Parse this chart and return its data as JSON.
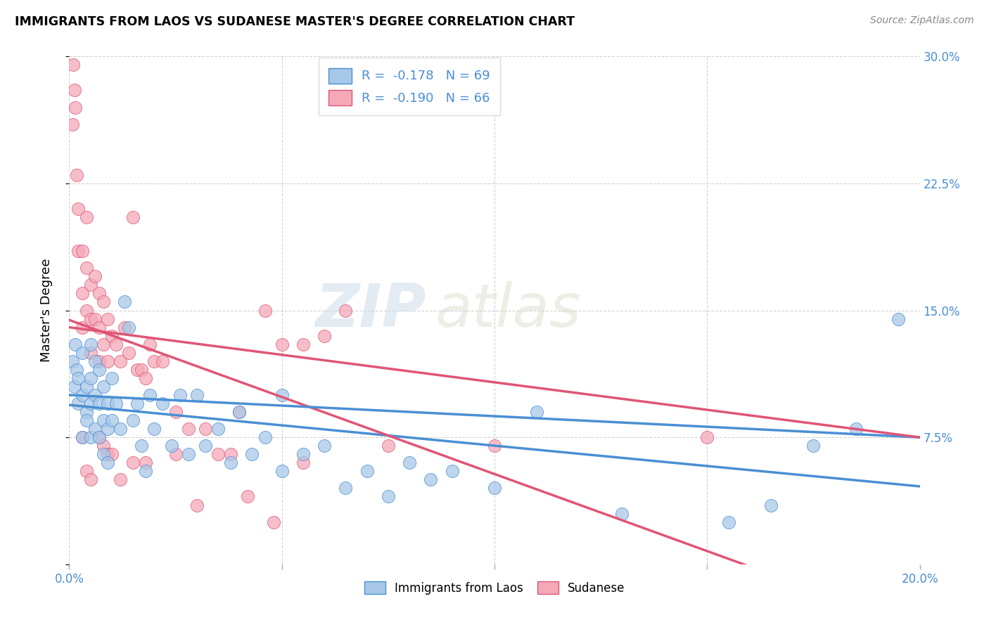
{
  "title": "IMMIGRANTS FROM LAOS VS SUDANESE MASTER'S DEGREE CORRELATION CHART",
  "source": "Source: ZipAtlas.com",
  "ylabel": "Master's Degree",
  "legend_r1": "-0.178",
  "legend_n1": "69",
  "legend_r2": "-0.190",
  "legend_n2": "66",
  "legend_label_1": "Immigrants from Laos",
  "legend_label_2": "Sudanese",
  "color_blue": "#A8C8E8",
  "color_pink": "#F4A8B8",
  "trendline_blue": "#4A8FD4",
  "trendline_pink": "#E05575",
  "watermark_zip": "ZIP",
  "watermark_atlas": "atlas",
  "xlim": [
    0.0,
    0.2
  ],
  "ylim": [
    0.0,
    0.3
  ],
  "xticks": [
    0.0,
    0.05,
    0.1,
    0.15,
    0.2
  ],
  "yticks": [
    0.0,
    0.075,
    0.15,
    0.225,
    0.3
  ],
  "blue_x": [
    0.0008,
    0.0012,
    0.0015,
    0.0018,
    0.002,
    0.002,
    0.003,
    0.003,
    0.003,
    0.004,
    0.004,
    0.004,
    0.005,
    0.005,
    0.005,
    0.005,
    0.006,
    0.006,
    0.006,
    0.007,
    0.007,
    0.007,
    0.008,
    0.008,
    0.008,
    0.009,
    0.009,
    0.009,
    0.01,
    0.01,
    0.011,
    0.012,
    0.013,
    0.014,
    0.015,
    0.016,
    0.017,
    0.018,
    0.019,
    0.02,
    0.022,
    0.024,
    0.026,
    0.028,
    0.03,
    0.032,
    0.035,
    0.038,
    0.04,
    0.043,
    0.046,
    0.05,
    0.055,
    0.06,
    0.065,
    0.07,
    0.08,
    0.085,
    0.09,
    0.1,
    0.11,
    0.13,
    0.155,
    0.165,
    0.175,
    0.185,
    0.195,
    0.05,
    0.075
  ],
  "blue_y": [
    0.12,
    0.105,
    0.13,
    0.115,
    0.095,
    0.11,
    0.125,
    0.1,
    0.075,
    0.09,
    0.105,
    0.085,
    0.13,
    0.11,
    0.095,
    0.075,
    0.12,
    0.1,
    0.08,
    0.115,
    0.095,
    0.075,
    0.105,
    0.085,
    0.065,
    0.095,
    0.08,
    0.06,
    0.11,
    0.085,
    0.095,
    0.08,
    0.155,
    0.14,
    0.085,
    0.095,
    0.07,
    0.055,
    0.1,
    0.08,
    0.095,
    0.07,
    0.1,
    0.065,
    0.1,
    0.07,
    0.08,
    0.06,
    0.09,
    0.065,
    0.075,
    0.055,
    0.065,
    0.07,
    0.045,
    0.055,
    0.06,
    0.05,
    0.055,
    0.045,
    0.09,
    0.03,
    0.025,
    0.035,
    0.07,
    0.08,
    0.145,
    0.1,
    0.04
  ],
  "pink_x": [
    0.0008,
    0.001,
    0.0012,
    0.0015,
    0.0018,
    0.002,
    0.002,
    0.003,
    0.003,
    0.003,
    0.004,
    0.004,
    0.004,
    0.005,
    0.005,
    0.005,
    0.006,
    0.006,
    0.007,
    0.007,
    0.007,
    0.008,
    0.008,
    0.009,
    0.009,
    0.01,
    0.011,
    0.012,
    0.013,
    0.014,
    0.015,
    0.016,
    0.017,
    0.018,
    0.019,
    0.02,
    0.022,
    0.025,
    0.028,
    0.032,
    0.035,
    0.04,
    0.046,
    0.05,
    0.055,
    0.06,
    0.003,
    0.004,
    0.005,
    0.007,
    0.008,
    0.009,
    0.01,
    0.012,
    0.015,
    0.018,
    0.025,
    0.03,
    0.038,
    0.042,
    0.048,
    0.055,
    0.065,
    0.075,
    0.1,
    0.15
  ],
  "pink_y": [
    0.26,
    0.295,
    0.28,
    0.27,
    0.23,
    0.21,
    0.185,
    0.185,
    0.16,
    0.14,
    0.205,
    0.175,
    0.15,
    0.165,
    0.145,
    0.125,
    0.17,
    0.145,
    0.16,
    0.14,
    0.12,
    0.155,
    0.13,
    0.145,
    0.12,
    0.135,
    0.13,
    0.12,
    0.14,
    0.125,
    0.205,
    0.115,
    0.115,
    0.11,
    0.13,
    0.12,
    0.12,
    0.09,
    0.08,
    0.08,
    0.065,
    0.09,
    0.15,
    0.13,
    0.13,
    0.135,
    0.075,
    0.055,
    0.05,
    0.075,
    0.07,
    0.065,
    0.065,
    0.05,
    0.06,
    0.06,
    0.065,
    0.035,
    0.065,
    0.04,
    0.025,
    0.06,
    0.15,
    0.07,
    0.07,
    0.075
  ]
}
